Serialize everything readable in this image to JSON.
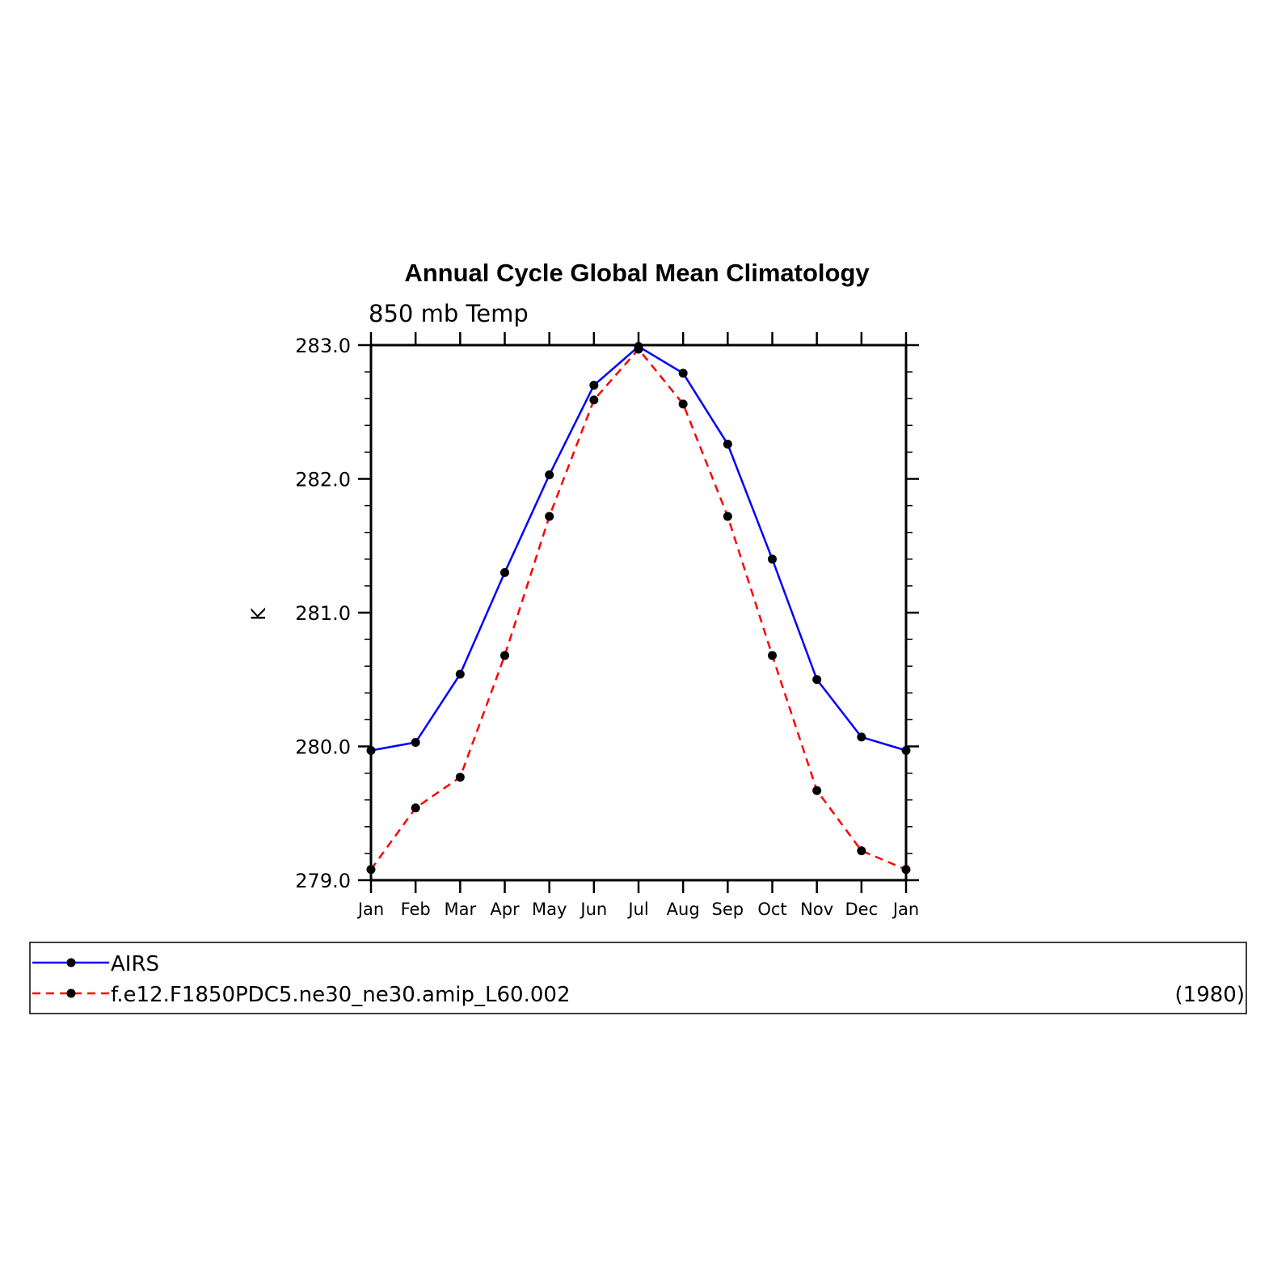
{
  "chart_data": {
    "type": "line",
    "title": "Annual Cycle Global Mean Climatology",
    "subtitle": "850 mb Temp",
    "ylabel": "K",
    "xlabel": "",
    "ylim": [
      279.0,
      283.0
    ],
    "yticks": [
      "279.0",
      "280.0",
      "281.0",
      "282.0",
      "283.0"
    ],
    "categories": [
      "Jan",
      "Feb",
      "Mar",
      "Apr",
      "May",
      "Jun",
      "Jul",
      "Aug",
      "Sep",
      "Oct",
      "Nov",
      "Dec",
      "Jan"
    ],
    "grid": false,
    "legend_position": "bottom",
    "series": [
      {
        "name": "AIRS",
        "color": "#0000ff",
        "line_style": "solid",
        "marker": "filled-circle",
        "values": [
          279.97,
          280.03,
          280.54,
          281.3,
          282.03,
          282.7,
          282.99,
          282.79,
          282.26,
          281.4,
          280.5,
          280.07,
          279.97
        ]
      },
      {
        "name": "f.e12.F1850PDC5.ne30_ne30.amip_L60.002",
        "color": "#ff0000",
        "line_style": "dashed",
        "marker": "filled-circle",
        "values": [
          279.08,
          279.54,
          279.77,
          280.68,
          281.72,
          282.59,
          282.97,
          282.56,
          281.72,
          280.68,
          279.67,
          279.22,
          279.08
        ]
      }
    ],
    "legend_note": "(1980)"
  }
}
